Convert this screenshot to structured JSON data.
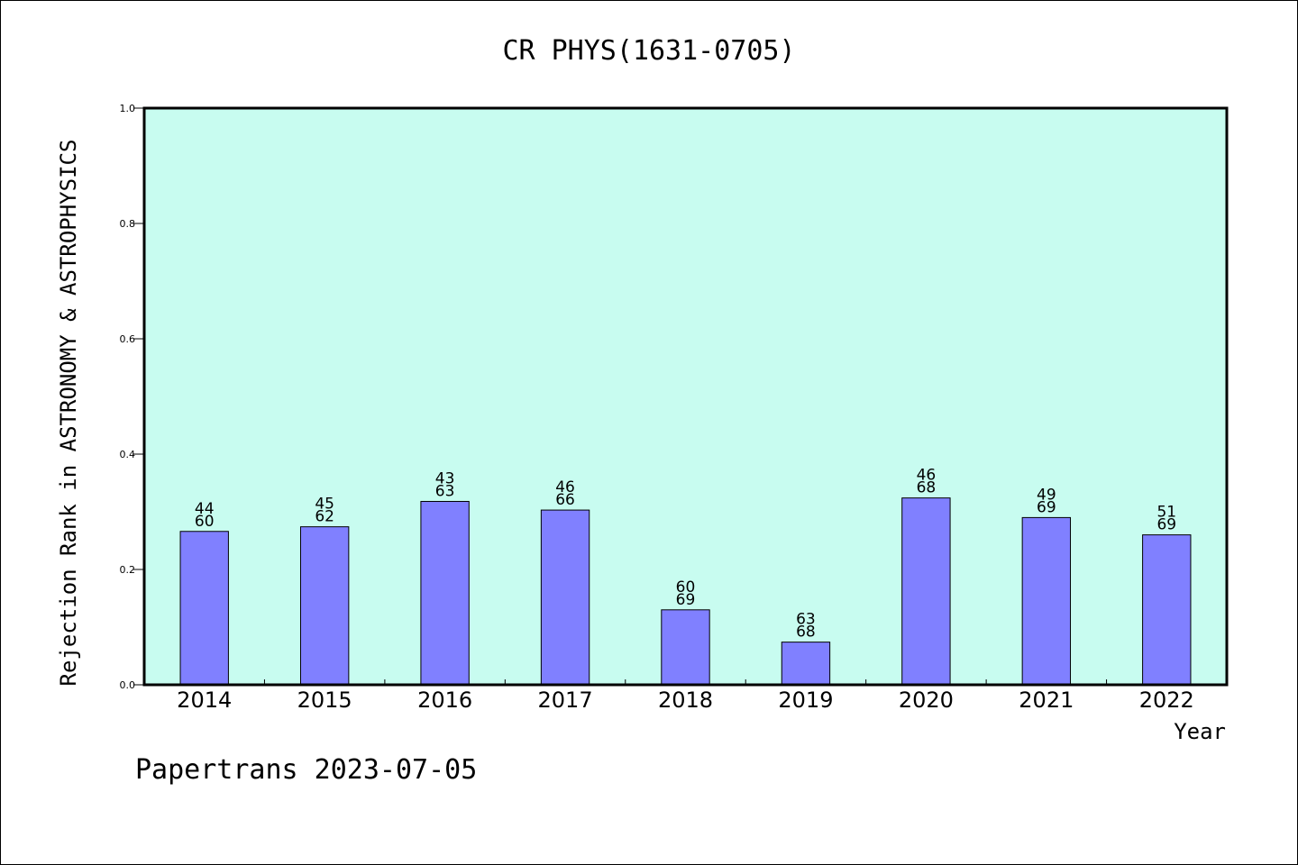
{
  "chart_data": {
    "type": "bar",
    "title": "CR PHYS(1631-0705)",
    "xlabel": "Year",
    "ylabel": "Rejection Rank in ASTRONOMY & ASTROPHYSICS",
    "ylim": [
      0,
      1.0
    ],
    "yticks": [
      "0.0",
      "0.2",
      "0.4",
      "0.6",
      "0.8",
      "1.0"
    ],
    "categories": [
      "2014",
      "2015",
      "2016",
      "2017",
      "2018",
      "2019",
      "2020",
      "2021",
      "2022"
    ],
    "values": [
      0.266,
      0.274,
      0.318,
      0.303,
      0.13,
      0.074,
      0.324,
      0.29,
      0.26
    ],
    "labels_top": [
      "44",
      "45",
      "43",
      "46",
      "60",
      "63",
      "46",
      "49",
      "51"
    ],
    "labels_bottom": [
      "60",
      "62",
      "63",
      "66",
      "69",
      "68",
      "68",
      "69",
      "69"
    ],
    "grid": false,
    "legend": "none",
    "colors": {
      "plot_background": "#c8fcf0",
      "bar_fill": "#8080ff",
      "bar_stroke": "#000000"
    }
  },
  "footer": {
    "credit": "Papertrans 2023-07-05"
  }
}
